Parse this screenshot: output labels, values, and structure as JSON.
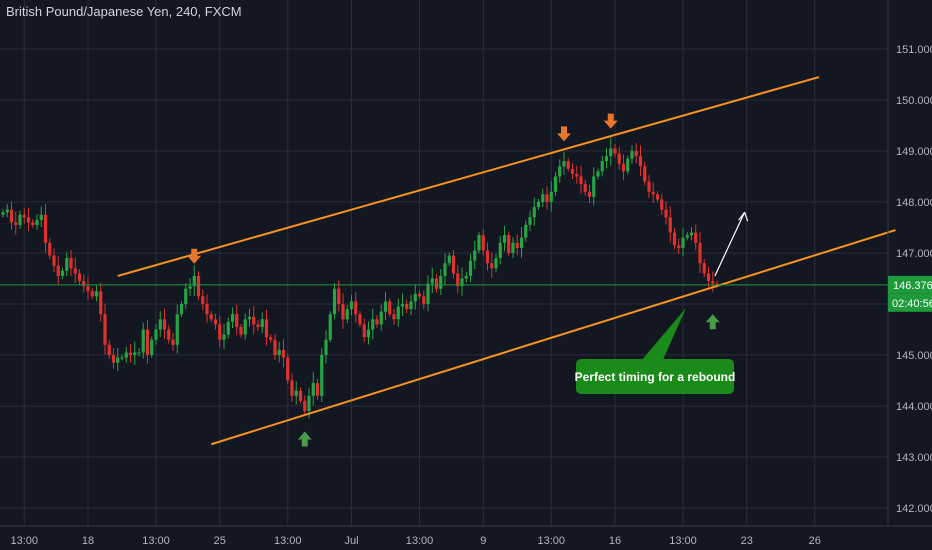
{
  "header": {
    "title": "British Pound/Japanese Yen, 240, FXCM"
  },
  "colors": {
    "background": "#131722",
    "grid": "#2a2e39",
    "up_candle": "#26a643",
    "down_candle": "#e0322d",
    "channel_line": "#f7931e",
    "marker_orange": "#e8772e",
    "marker_green": "#4a9a4a",
    "price_line": "#1e9a3a",
    "annotation_bg": "#1a8a1a",
    "arrow": "#ffffff"
  },
  "price_tag": {
    "price": "146.376",
    "countdown": "02:40:56"
  },
  "annotation": {
    "text": "Perfect timing for a rebound"
  },
  "chart_data": {
    "type": "candlestick",
    "title": "British Pound/Japanese Yen, 240, FXCM",
    "ylim": [
      141.7,
      151.7
    ],
    "y_ticks": [
      "151.000",
      "150.000",
      "149.000",
      "148.000",
      "147.000",
      "146.000",
      "145.000",
      "144.000",
      "143.000",
      "142.000"
    ],
    "y_tick_values": [
      151,
      150,
      149,
      148,
      147,
      146,
      145,
      144,
      143,
      142
    ],
    "x_tick_labels": [
      "13:00",
      "18",
      "13:00",
      "25",
      "13:00",
      "Jul",
      "13:00",
      "9",
      "13:00",
      "16",
      "13:00",
      "23",
      "26"
    ],
    "x_tick_bars": [
      5,
      20,
      36,
      51,
      67,
      82,
      98,
      113,
      129,
      144,
      160,
      175,
      191
    ],
    "bar_count": 210,
    "last_price": 146.376,
    "channel_upper": [
      [
        27,
        146.55
      ],
      [
        192,
        150.45
      ]
    ],
    "channel_lower": [
      [
        49,
        143.25
      ],
      [
        210,
        147.45
      ]
    ],
    "down_markers": [
      [
        45,
        146.75
      ],
      [
        132,
        149.15
      ],
      [
        143,
        149.4
      ]
    ],
    "up_markers": [
      [
        71,
        143.5
      ],
      [
        167,
        145.8
      ]
    ],
    "projection_arrow": [
      [
        167.5,
        146.55
      ],
      [
        174.5,
        147.8
      ]
    ],
    "closes": [
      147.8,
      147.85,
      147.6,
      147.55,
      147.75,
      147.7,
      147.6,
      147.55,
      147.65,
      147.75,
      147.2,
      146.95,
      146.75,
      146.55,
      146.65,
      146.9,
      146.7,
      146.6,
      146.45,
      146.35,
      146.25,
      146.15,
      146.25,
      145.8,
      145.2,
      145.0,
      144.85,
      144.95,
      144.95,
      145.05,
      145.0,
      145.05,
      145.05,
      145.5,
      145.0,
      145.3,
      145.5,
      145.7,
      145.5,
      145.3,
      145.2,
      145.8,
      146.0,
      146.3,
      146.35,
      146.55,
      146.15,
      146.0,
      145.8,
      145.7,
      145.6,
      145.3,
      145.4,
      145.65,
      145.8,
      145.55,
      145.4,
      145.7,
      145.75,
      145.6,
      145.55,
      145.7,
      145.35,
      145.3,
      145.0,
      145.1,
      144.95,
      144.5,
      144.2,
      144.3,
      144.1,
      143.9,
      144.2,
      144.45,
      144.2,
      145.0,
      145.3,
      145.8,
      146.3,
      146.0,
      145.7,
      145.9,
      146.05,
      145.8,
      145.6,
      145.35,
      145.5,
      145.7,
      145.6,
      145.85,
      146.05,
      145.8,
      145.7,
      145.95,
      146.0,
      145.9,
      146.05,
      146.2,
      146.15,
      146.0,
      146.4,
      146.5,
      146.3,
      146.55,
      146.8,
      146.95,
      146.6,
      146.35,
      146.5,
      146.55,
      146.85,
      147.05,
      147.35,
      147.05,
      146.8,
      146.7,
      146.9,
      147.2,
      147.35,
      147.0,
      147.2,
      147.1,
      147.3,
      147.55,
      147.7,
      147.9,
      148.0,
      148.15,
      148.0,
      148.2,
      148.5,
      148.7,
      148.8,
      148.65,
      148.55,
      148.5,
      148.35,
      148.2,
      148.1,
      148.5,
      148.6,
      148.8,
      148.9,
      149.05,
      148.95,
      148.75,
      148.6,
      148.85,
      149.0,
      148.9,
      148.7,
      148.4,
      148.2,
      148.15,
      148.05,
      147.85,
      147.7,
      147.4,
      147.15,
      147.1,
      147.3,
      147.35,
      147.4,
      147.2,
      146.8,
      146.6,
      146.45,
      146.4,
      146.376
    ]
  }
}
